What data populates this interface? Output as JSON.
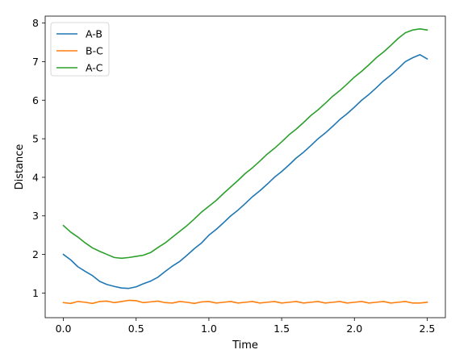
{
  "chart_data": {
    "type": "line",
    "xlabel": "Time",
    "ylabel": "Distance",
    "xlim": [
      -0.125,
      2.625
    ],
    "ylim": [
      0.36,
      8.18
    ],
    "xticks": [
      0.0,
      0.5,
      1.0,
      1.5,
      2.0,
      2.5
    ],
    "xtick_labels": [
      "0.0",
      "0.5",
      "1.0",
      "1.5",
      "2.0",
      "2.5"
    ],
    "yticks": [
      1,
      2,
      3,
      4,
      5,
      6,
      7,
      8
    ],
    "ytick_labels": [
      "1",
      "2",
      "3",
      "4",
      "5",
      "6",
      "7",
      "8"
    ],
    "grid": false,
    "legend": "top-left",
    "series": [
      {
        "name": "A-B",
        "color": "#1f77b4",
        "x": [
          0.0,
          0.05,
          0.1,
          0.15,
          0.2,
          0.25,
          0.3,
          0.35,
          0.4,
          0.45,
          0.5,
          0.55,
          0.6,
          0.65,
          0.7,
          0.75,
          0.8,
          0.85,
          0.9,
          0.95,
          1.0,
          1.05,
          1.1,
          1.15,
          1.2,
          1.25,
          1.3,
          1.35,
          1.4,
          1.45,
          1.5,
          1.55,
          1.6,
          1.65,
          1.7,
          1.75,
          1.8,
          1.85,
          1.9,
          1.95,
          2.0,
          2.05,
          2.1,
          2.15,
          2.2,
          2.25,
          2.3,
          2.35,
          2.4,
          2.45,
          2.5
        ],
        "values": [
          2.0,
          1.86,
          1.68,
          1.56,
          1.45,
          1.3,
          1.22,
          1.17,
          1.13,
          1.12,
          1.16,
          1.24,
          1.31,
          1.41,
          1.56,
          1.7,
          1.82,
          1.98,
          2.15,
          2.3,
          2.5,
          2.65,
          2.82,
          3.0,
          3.15,
          3.32,
          3.5,
          3.65,
          3.82,
          4.0,
          4.15,
          4.32,
          4.5,
          4.65,
          4.82,
          5.0,
          5.15,
          5.32,
          5.5,
          5.65,
          5.82,
          6.0,
          6.15,
          6.32,
          6.5,
          6.65,
          6.82,
          7.0,
          7.1,
          7.18,
          7.07
        ]
      },
      {
        "name": "B-C",
        "color": "#ff7f0e",
        "x": [
          0.0,
          0.05,
          0.1,
          0.15,
          0.2,
          0.25,
          0.3,
          0.35,
          0.4,
          0.45,
          0.5,
          0.55,
          0.6,
          0.65,
          0.7,
          0.75,
          0.8,
          0.85,
          0.9,
          0.95,
          1.0,
          1.05,
          1.1,
          1.15,
          1.2,
          1.25,
          1.3,
          1.35,
          1.4,
          1.45,
          1.5,
          1.55,
          1.6,
          1.65,
          1.7,
          1.75,
          1.8,
          1.85,
          1.9,
          1.95,
          2.0,
          2.05,
          2.1,
          2.15,
          2.2,
          2.25,
          2.3,
          2.35,
          2.4,
          2.45,
          2.5
        ],
        "values": [
          0.75,
          0.73,
          0.78,
          0.76,
          0.73,
          0.78,
          0.79,
          0.75,
          0.78,
          0.81,
          0.8,
          0.75,
          0.77,
          0.79,
          0.75,
          0.74,
          0.78,
          0.76,
          0.73,
          0.77,
          0.78,
          0.74,
          0.76,
          0.78,
          0.74,
          0.76,
          0.78,
          0.74,
          0.76,
          0.78,
          0.74,
          0.76,
          0.78,
          0.74,
          0.76,
          0.78,
          0.74,
          0.76,
          0.78,
          0.74,
          0.76,
          0.78,
          0.74,
          0.76,
          0.78,
          0.74,
          0.76,
          0.78,
          0.74,
          0.74,
          0.76
        ]
      },
      {
        "name": "A-C",
        "color": "#2ca02c",
        "x": [
          0.0,
          0.05,
          0.1,
          0.15,
          0.2,
          0.25,
          0.3,
          0.35,
          0.4,
          0.45,
          0.5,
          0.55,
          0.6,
          0.65,
          0.7,
          0.75,
          0.8,
          0.85,
          0.9,
          0.95,
          1.0,
          1.05,
          1.1,
          1.15,
          1.2,
          1.25,
          1.3,
          1.35,
          1.4,
          1.45,
          1.5,
          1.55,
          1.6,
          1.65,
          1.7,
          1.75,
          1.8,
          1.85,
          1.9,
          1.95,
          2.0,
          2.05,
          2.1,
          2.15,
          2.2,
          2.25,
          2.3,
          2.35,
          2.4,
          2.45,
          2.5
        ],
        "values": [
          2.75,
          2.58,
          2.45,
          2.3,
          2.17,
          2.08,
          2.0,
          1.92,
          1.9,
          1.92,
          1.95,
          1.98,
          2.05,
          2.18,
          2.3,
          2.45,
          2.6,
          2.75,
          2.92,
          3.1,
          3.25,
          3.4,
          3.58,
          3.75,
          3.92,
          4.1,
          4.25,
          4.42,
          4.6,
          4.75,
          4.92,
          5.1,
          5.25,
          5.42,
          5.6,
          5.75,
          5.92,
          6.1,
          6.25,
          6.42,
          6.6,
          6.75,
          6.92,
          7.1,
          7.25,
          7.42,
          7.6,
          7.75,
          7.82,
          7.85,
          7.82
        ]
      }
    ]
  }
}
